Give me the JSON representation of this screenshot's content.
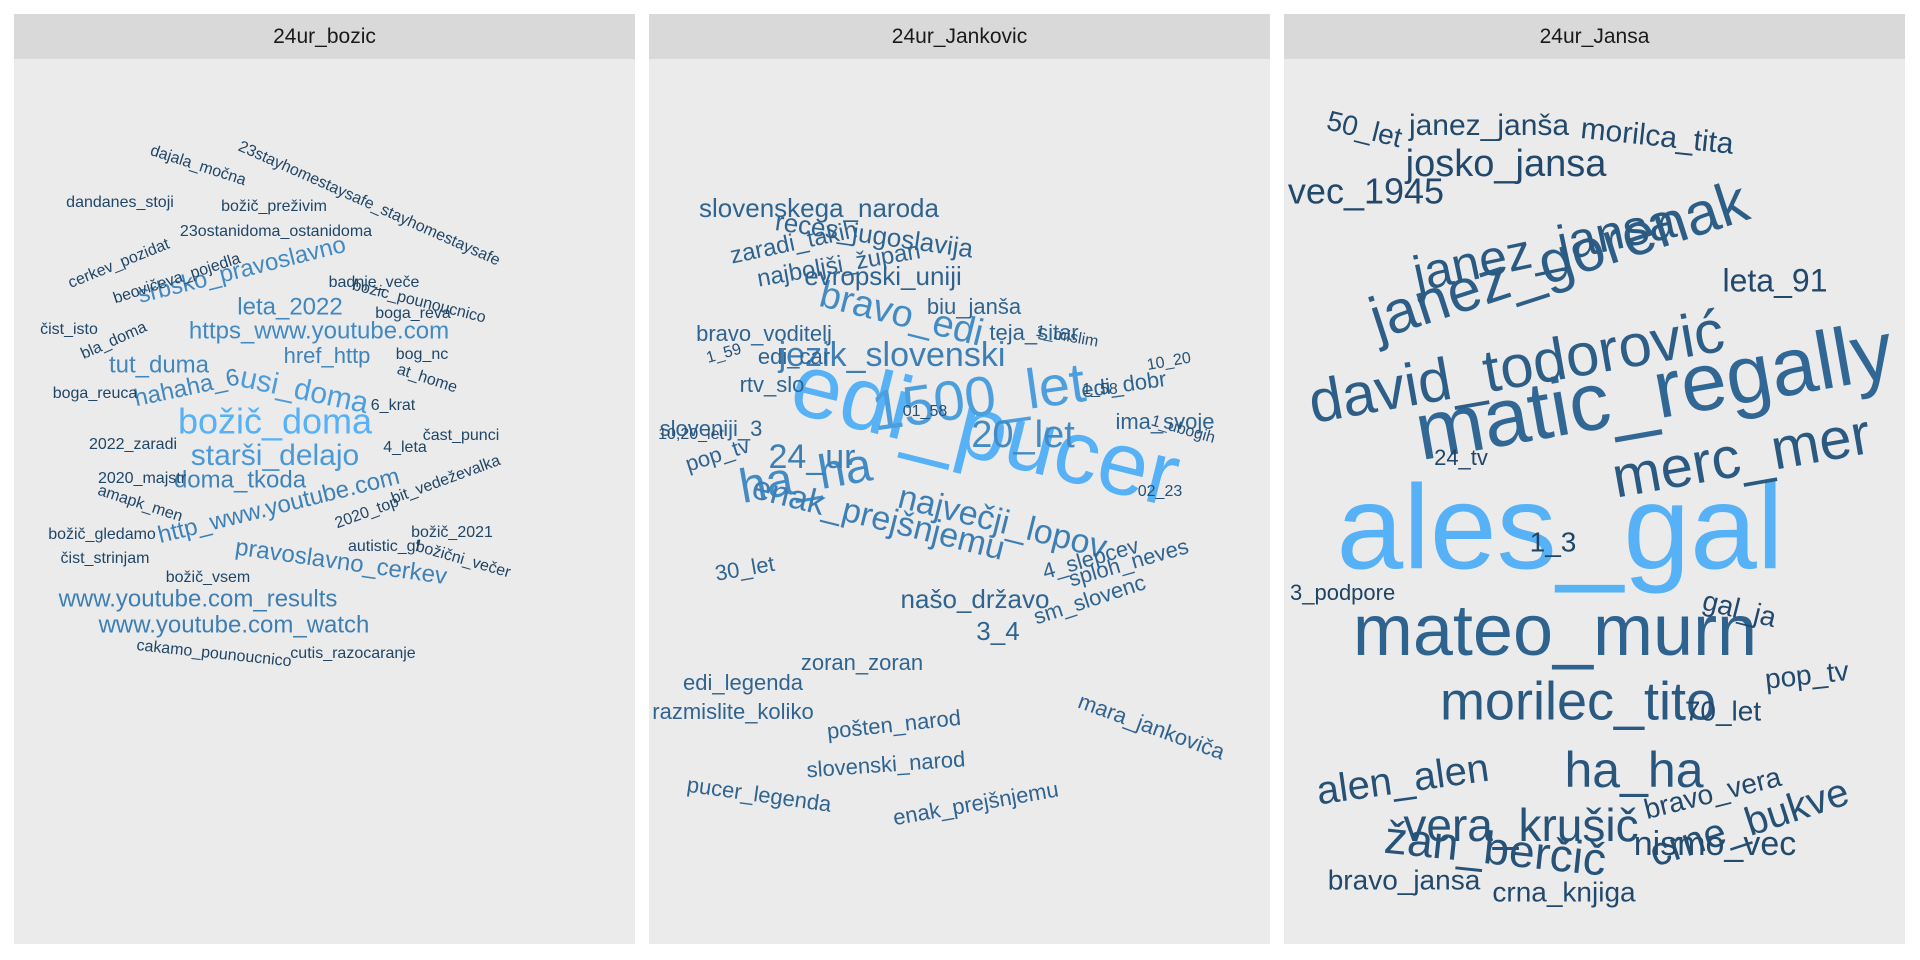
{
  "chart_data": {
    "type": "wordcloud",
    "colors": {
      "low": "#132B43",
      "high": "#56B1F7",
      "panel_bg": "#ebebeb",
      "strip_bg": "#d9d9d9"
    },
    "panels": [
      {
        "title": "24ur_bozic",
        "words": [
          {
            "text": "božič_doma",
            "weight": 1.0
          },
          {
            "text": "usi_doma",
            "weight": 0.85
          },
          {
            "text": "starši_delajo",
            "weight": 0.82
          },
          {
            "text": "srbsko_pravoslavno",
            "weight": 0.7
          },
          {
            "text": "https_www.youtube.com",
            "weight": 0.7
          },
          {
            "text": "hahaha_6",
            "weight": 0.68
          },
          {
            "text": "tut_duma",
            "weight": 0.68
          },
          {
            "text": "leta_2022",
            "weight": 0.68
          },
          {
            "text": "href_http",
            "weight": 0.66
          },
          {
            "text": "doma_tkoda",
            "weight": 0.66
          },
          {
            "text": "http_www.youtube.com",
            "weight": 0.64
          },
          {
            "text": "pravoslavno_cerkev",
            "weight": 0.64
          },
          {
            "text": "www.youtube.com_results",
            "weight": 0.62
          },
          {
            "text": "www.youtube.com_watch",
            "weight": 0.62
          },
          {
            "text": "23stayhomestaysafe_stayhomestaysafe",
            "weight": 0.2
          },
          {
            "text": "dajala_močna",
            "weight": 0.2
          },
          {
            "text": "dandanes_stoji",
            "weight": 0.2
          },
          {
            "text": "božič_preživim",
            "weight": 0.2
          },
          {
            "text": "23ostanidoma_ostanidoma",
            "weight": 0.2
          },
          {
            "text": "cerkev_pozidat",
            "weight": 0.2
          },
          {
            "text": "beovičeva_pojedla",
            "weight": 0.2
          },
          {
            "text": "bozic_pounoucnico",
            "weight": 0.2
          },
          {
            "text": "badnje_veče",
            "weight": 0.2
          },
          {
            "text": "boga_reva",
            "weight": 0.2
          },
          {
            "text": "čist_isto",
            "weight": 0.2
          },
          {
            "text": "bla_doma",
            "weight": 0.2
          },
          {
            "text": "bog_nc",
            "weight": 0.2
          },
          {
            "text": "boga_reuca",
            "weight": 0.2
          },
          {
            "text": "at_home",
            "weight": 0.2
          },
          {
            "text": "6_krat",
            "weight": 0.2
          },
          {
            "text": "čast_punci",
            "weight": 0.2
          },
          {
            "text": "2022_zaradi",
            "weight": 0.2
          },
          {
            "text": "4_leta",
            "weight": 0.2
          },
          {
            "text": "2020_majstr",
            "weight": 0.2
          },
          {
            "text": "bit_vedeževalka",
            "weight": 0.2
          },
          {
            "text": "amapk_men",
            "weight": 0.2
          },
          {
            "text": "2020_top",
            "weight": 0.2
          },
          {
            "text": "božič_2021",
            "weight": 0.2
          },
          {
            "text": "božič_gledamo",
            "weight": 0.2
          },
          {
            "text": "autistic_gf",
            "weight": 0.2
          },
          {
            "text": "čist_strinjam",
            "weight": 0.2
          },
          {
            "text": "božič_vsem",
            "weight": 0.2
          },
          {
            "text": "božični_večer",
            "weight": 0.2
          },
          {
            "text": "cakamo_pounoucnico",
            "weight": 0.2
          },
          {
            "text": "cutis_razocaranje",
            "weight": 0.2
          }
        ]
      },
      {
        "title": "24ur_Jankovic",
        "words": [
          {
            "text": "edi_pucer",
            "weight": 0.35
          },
          {
            "text": "1500_let",
            "weight": 0.3
          },
          {
            "text": "ha_ha",
            "weight": 0.25
          },
          {
            "text": "20_let",
            "weight": 0.25
          },
          {
            "text": "bravo_edi",
            "weight": 0.25
          },
          {
            "text": "jezik_slovenski",
            "weight": 0.22
          },
          {
            "text": "24_ur",
            "weight": 0.22
          },
          {
            "text": "enak_prejšnjemu",
            "weight": 0.22
          },
          {
            "text": "največji_lopov",
            "weight": 0.22
          },
          {
            "text": "slovenskega_naroda",
            "weight": 0.15
          },
          {
            "text": "reces_jugoslavija",
            "weight": 0.15
          },
          {
            "text": "zaradi_takih",
            "weight": 0.15
          },
          {
            "text": "najboljši_župan",
            "weight": 0.15
          },
          {
            "text": "evropski_uniji",
            "weight": 0.15
          },
          {
            "text": "bravo_voditelj",
            "weight": 0.15
          },
          {
            "text": "biu_janša",
            "weight": 0.15
          },
          {
            "text": "teja_sitar",
            "weight": 0.15
          },
          {
            "text": "edi_dobr",
            "weight": 0.15
          },
          {
            "text": "edi_car",
            "weight": 0.15
          },
          {
            "text": "rtv_slo",
            "weight": 0.15
          },
          {
            "text": "sloveniji_3",
            "weight": 0.15
          },
          {
            "text": "ima_svoje",
            "weight": 0.15
          },
          {
            "text": "pop_tv",
            "weight": 0.15
          },
          {
            "text": "30_let",
            "weight": 0.15
          },
          {
            "text": "3_4",
            "weight": 0.15
          },
          {
            "text": "našo_državo",
            "weight": 0.15
          },
          {
            "text": "4_slepcev",
            "weight": 0.15
          },
          {
            "text": "sm_slovenc",
            "weight": 0.15
          },
          {
            "text": "sploh_neves",
            "weight": 0.15
          },
          {
            "text": "edi_legenda",
            "weight": 0.15
          },
          {
            "text": "zoran_zoran",
            "weight": 0.15
          },
          {
            "text": "razmislite_koliko",
            "weight": 0.15
          },
          {
            "text": "mara_jankoviča",
            "weight": 0.15
          },
          {
            "text": "pošten_narod",
            "weight": 0.15
          },
          {
            "text": "slovenski_narod",
            "weight": 0.15
          },
          {
            "text": "pucer_legenda",
            "weight": 0.15
          },
          {
            "text": "enak_prejšnjemu",
            "weight": 0.15
          },
          {
            "text": "1_mislim",
            "weight": 0.1
          },
          {
            "text": "1_59",
            "weight": 0.1
          },
          {
            "text": "1_58",
            "weight": 0.1
          },
          {
            "text": "10_20",
            "weight": 0.1
          },
          {
            "text": "01_58",
            "weight": 0.1
          },
          {
            "text": "10,20_let",
            "weight": 0.1
          },
          {
            "text": "1_ubogih",
            "weight": 0.1
          },
          {
            "text": "02_23",
            "weight": 0.1
          }
        ]
      },
      {
        "title": "24ur_Jansa",
        "words": [
          {
            "text": "ales_gal",
            "weight": 1.0
          },
          {
            "text": "matic_regally",
            "weight": 0.45
          },
          {
            "text": "mateo_murn",
            "weight": 0.42
          },
          {
            "text": "david_todorović",
            "weight": 0.38
          },
          {
            "text": "janez_gorenak",
            "weight": 0.38
          },
          {
            "text": "merc_mer",
            "weight": 0.35
          },
          {
            "text": "morilec_tito",
            "weight": 0.35
          },
          {
            "text": "janez_jansa",
            "weight": 0.35
          },
          {
            "text": "ha_ha",
            "weight": 0.32
          },
          {
            "text": "vera_krušič",
            "weight": 0.3
          },
          {
            "text": "žan_berčič",
            "weight": 0.3
          },
          {
            "text": "crne_bukve",
            "weight": 0.28
          },
          {
            "text": "alen_alen",
            "weight": 0.28
          },
          {
            "text": "josko_jansa",
            "weight": 0.22
          },
          {
            "text": "janez_janša",
            "weight": 0.22
          },
          {
            "text": "morilca_tita",
            "weight": 0.22
          },
          {
            "text": "50_let",
            "weight": 0.22
          },
          {
            "text": "vec_1945",
            "weight": 0.22
          },
          {
            "text": "leta_91",
            "weight": 0.22
          },
          {
            "text": "24_tv",
            "weight": 0.2
          },
          {
            "text": "1_3",
            "weight": 0.2
          },
          {
            "text": "3_podpore",
            "weight": 0.18
          },
          {
            "text": "gal_ja",
            "weight": 0.22
          },
          {
            "text": "pop_tv",
            "weight": 0.22
          },
          {
            "text": "70_let",
            "weight": 0.22
          },
          {
            "text": "bravo_vera",
            "weight": 0.22
          },
          {
            "text": "nismo_vec",
            "weight": 0.24
          },
          {
            "text": "bravo_jansa",
            "weight": 0.22
          },
          {
            "text": "crna_knjiga",
            "weight": 0.22
          }
        ]
      }
    ]
  }
}
